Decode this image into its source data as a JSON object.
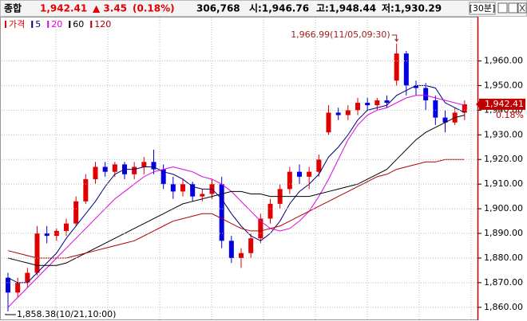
{
  "header": {
    "index_name": "종합",
    "price": "1,942.41",
    "change": "▲ 3.45",
    "change_rate": "(0.18%)",
    "volume": "306,768",
    "open": "시:1,946.76",
    "high": "고:1,948.44",
    "low": "저:1,930.29",
    "period": "[30분]"
  },
  "chart_data": {
    "type": "candlestick",
    "price_name": "가격",
    "up_color": "#e00000",
    "down_color": "#0000e0",
    "open": [
      1872,
      1866,
      1870,
      1874,
      1890,
      1889,
      1891,
      1894,
      1903,
      1912,
      1917,
      1915,
      1918,
      1914,
      1917,
      1919,
      1916,
      1910,
      1907,
      1910,
      1905,
      1906,
      1910,
      1887,
      1880,
      1882,
      1888,
      1896,
      1902,
      1908,
      1915,
      1913,
      1915,
      1931,
      1939,
      1938,
      1940,
      1943,
      1942,
      1944,
      1952,
      1963,
      1950,
      1949,
      1944,
      1937,
      1935,
      1939
    ],
    "high": [
      1874,
      1872,
      1876,
      1893,
      1893,
      1892,
      1896,
      1905,
      1914,
      1919,
      1919,
      1919,
      1919,
      1919,
      1921,
      1924,
      1918,
      1913,
      1912,
      1911,
      1908,
      1912,
      1913,
      1889,
      1884,
      1890,
      1898,
      1904,
      1910,
      1917,
      1918,
      1917,
      1922,
      1942,
      1941,
      1942,
      1945,
      1945,
      1945,
      1946,
      1966.99,
      1964,
      1952,
      1951,
      1946,
      1940,
      1941,
      1944
    ],
    "low": [
      1858.38,
      1864,
      1868,
      1873,
      1886,
      1887,
      1889,
      1893,
      1902,
      1910,
      1913,
      1913,
      1912,
      1912,
      1914,
      1914,
      1908,
      1904,
      1905,
      1903,
      1903,
      1904,
      1884,
      1878,
      1876,
      1880,
      1886,
      1894,
      1900,
      1906,
      1910,
      1908,
      1913,
      1930,
      1936,
      1936,
      1938,
      1940,
      1940,
      1941,
      1950,
      1946,
      1946,
      1940,
      1934,
      1931,
      1934,
      1936
    ],
    "close": [
      1866,
      1870,
      1874,
      1890,
      1889,
      1891,
      1894,
      1903,
      1912,
      1917,
      1915,
      1918,
      1914,
      1917,
      1919,
      1916,
      1910,
      1907,
      1910,
      1905,
      1906,
      1910,
      1887,
      1880,
      1882,
      1888,
      1896,
      1902,
      1908,
      1915,
      1913,
      1915,
      1920,
      1939,
      1938,
      1940,
      1943,
      1942,
      1944,
      1943,
      1963,
      1950,
      1949,
      1944,
      1937,
      1935,
      1939,
      1942.41
    ],
    "series": [
      {
        "name": "5",
        "color": "#000080",
        "values": [
          1872,
          1870,
          1870,
          1874,
          1878,
          1882,
          1888,
          1893,
          1898,
          1903,
          1909,
          1914,
          1916,
          1916,
          1917,
          1917,
          1915,
          1914,
          1912,
          1909,
          1908,
          1908,
          1904,
          1898,
          1893,
          1889,
          1887,
          1890,
          1895,
          1902,
          1907,
          1910,
          1914,
          1921,
          1925,
          1930,
          1936,
          1940,
          1941,
          1942,
          1946,
          1948,
          1950,
          1950,
          1949,
          1943,
          1941,
          1939
        ]
      },
      {
        "name": "20",
        "color": "#e000e0",
        "values": [
          1860,
          1864,
          1868,
          1872,
          1876,
          1880,
          1884,
          1888,
          1892,
          1896,
          1900,
          1904,
          1907,
          1910,
          1913,
          1915,
          1916,
          1917,
          1916,
          1915,
          1913,
          1912,
          1910,
          1907,
          1903,
          1899,
          1895,
          1892,
          1891,
          1892,
          1895,
          1899,
          1905,
          1912,
          1920,
          1928,
          1934,
          1938,
          1940,
          1941,
          1943,
          1945,
          1946,
          1946,
          1945,
          1944,
          1943,
          1942
        ]
      },
      {
        "name": "60",
        "color": "#000000",
        "values": [
          1880,
          1879,
          1878,
          1877,
          1877,
          1877,
          1878,
          1880,
          1882,
          1884,
          1886,
          1888,
          1890,
          1892,
          1894,
          1896,
          1898,
          1900,
          1902,
          1903,
          1904,
          1905,
          1906,
          1907,
          1907,
          1906,
          1906,
          1905,
          1905,
          1905,
          1905,
          1905,
          1906,
          1907,
          1908,
          1909,
          1910,
          1912,
          1914,
          1916,
          1920,
          1924,
          1928,
          1931,
          1933,
          1935,
          1937,
          1938
        ]
      },
      {
        "name": "120",
        "color": "#b00000",
        "values": [
          1883,
          1882,
          1881,
          1880,
          1880,
          1880,
          1880,
          1881,
          1882,
          1883,
          1884,
          1885,
          1886,
          1887,
          1889,
          1891,
          1893,
          1895,
          1896,
          1897,
          1898,
          1898,
          1896,
          1894,
          1892,
          1891,
          1891,
          1892,
          1893,
          1895,
          1897,
          1899,
          1901,
          1903,
          1905,
          1907,
          1909,
          1911,
          1913,
          1914,
          1916,
          1917,
          1918,
          1919,
          1919,
          1920,
          1920,
          1920
        ]
      }
    ],
    "ylim": [
      1855.1,
      1977.6
    ],
    "yticks": [
      {
        "value": 1860,
        "label": "1,860.00"
      },
      {
        "value": 1870,
        "label": "1,870.00"
      },
      {
        "value": 1880,
        "label": "1,880.00"
      },
      {
        "value": 1890,
        "label": "1,890.00"
      },
      {
        "value": 1900,
        "label": "1,900.00"
      },
      {
        "value": 1910,
        "label": "1,910.00"
      },
      {
        "value": 1920,
        "label": "1,920.00"
      },
      {
        "value": 1930,
        "label": "1,930.00"
      },
      {
        "value": 1940,
        "label": "1,940.00"
      },
      {
        "value": 1950,
        "label": "1,950.00"
      },
      {
        "value": 1960,
        "label": "1,960.00"
      }
    ],
    "grid": true,
    "last_price_label": "1,942.41",
    "last_change_label": "0.18%",
    "annotations": [
      {
        "label": "1,966.99(11/05,09:30)",
        "value": 1966.99,
        "kind": "high"
      },
      {
        "label": "1,858.38(10/21,10:00)",
        "value": 1858.38,
        "kind": "low"
      }
    ]
  }
}
